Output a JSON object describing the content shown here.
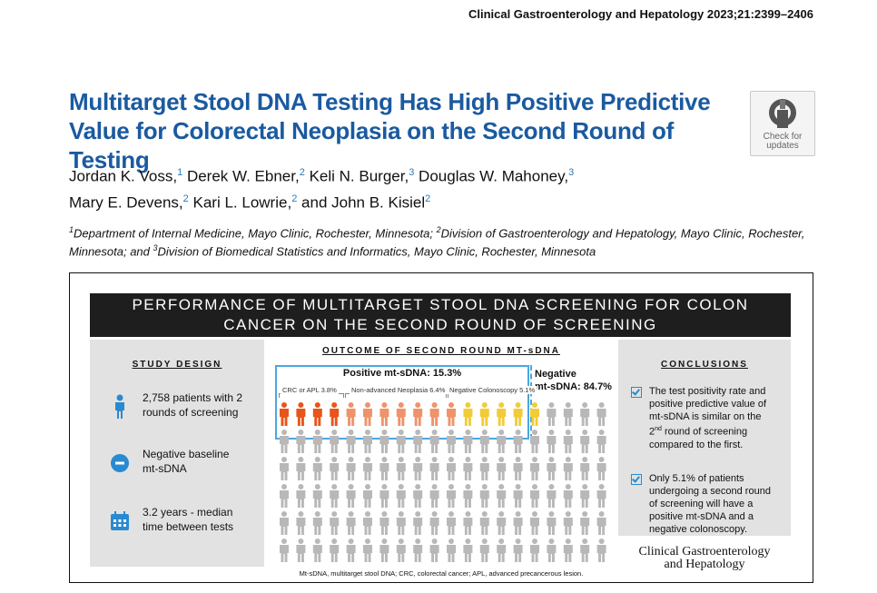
{
  "journal_ref": "Clinical Gastroenterology and Hepatology 2023;21:2399–2406",
  "title": {
    "line1": "Multitarget Stool DNA Testing Has High Positive Predictive",
    "line2": "Value for Colorectal Neoplasia on the Second Round of Testing"
  },
  "crossmark": {
    "line1": "Check for",
    "line2": "updates",
    "icon": "crossmark-icon"
  },
  "authors": [
    {
      "name": "Jordan K. Voss,",
      "aff": "1"
    },
    {
      "name": "Derek W. Ebner,",
      "aff": "2"
    },
    {
      "name": "Keli N. Burger,",
      "aff": "3"
    },
    {
      "name": "Douglas W. Mahoney,",
      "aff": "3"
    },
    {
      "name": "Mary E. Devens,",
      "aff": "2"
    },
    {
      "name": "Kari L. Lowrie,",
      "aff": "2"
    },
    {
      "name": "and John B. Kisiel",
      "aff": "2"
    }
  ],
  "affiliations": {
    "a1_sup": "1",
    "a1": "Department of Internal Medicine, Mayo Clinic, Rochester, Minnesota; ",
    "a2_sup": "2",
    "a2": "Division of Gastroenterology and Hepatology, Mayo Clinic, Rochester, Minnesota; and ",
    "a3_sup": "3",
    "a3": "Division of Biomedical Statistics and Informatics, Mayo Clinic, Rochester, Minnesota"
  },
  "abstract": {
    "header_line1": "PERFORMANCE OF MULTITARGET STOOL DNA SCREENING FOR COLON",
    "header_line2": "CANCER ON THE SECOND ROUND OF SCREENING",
    "study_design": {
      "heading": "STUDY DESIGN",
      "items": [
        {
          "icon": "person-icon",
          "line1": "2,758 patients with 2",
          "line2": "rounds of screening"
        },
        {
          "icon": "minus-circle-icon",
          "line1": "Negative baseline",
          "line2": "mt-sDNA"
        },
        {
          "icon": "calendar-icon",
          "line1": "3.2 years - median",
          "line2": "time between tests"
        }
      ]
    },
    "outcome": {
      "heading": "OUTCOME OF SECOND ROUND MT-sDNA",
      "positive_label": "Positive mt-sDNA: 15.3%",
      "negative_label_1": "Negative",
      "negative_label_2": "mt-sDNA: 84.7%",
      "groups": [
        {
          "label": "CRC or APL 3.8%",
          "color": "#e8541a",
          "count": 4
        },
        {
          "label": "Non-advanced Neoplasia 6.4%",
          "color": "#f0936a",
          "count": 7
        },
        {
          "label": "Negative Colonoscopy 5.1%",
          "color": "#f2cc38",
          "count": 5
        }
      ],
      "negative_color": "#b8b8b8",
      "footnote": "Mt-sDNA, multitarget stool DNA; CRC, colorectal cancer; APL, advanced precancerous lesion."
    },
    "conclusions": {
      "heading": "CONCLUSIONS",
      "items": [
        {
          "l1": "The test positivity rate and",
          "l2": "positive predictive value of",
          "l3": "mt-sDNA is similar on the",
          "l4a": "2",
          "l4sup": "nd",
          "l4b": " round of screening",
          "l5": "compared to the first."
        },
        {
          "l1": "Only 5.1% of patients",
          "l2": "undergoing a second round",
          "l3": "of screening will have a",
          "l4": "positive mt-sDNA and a",
          "l5": "negative colonoscopy."
        }
      ]
    },
    "logo_line1": "Clinical Gastroenterology",
    "logo_line2": "and Hepatology"
  }
}
